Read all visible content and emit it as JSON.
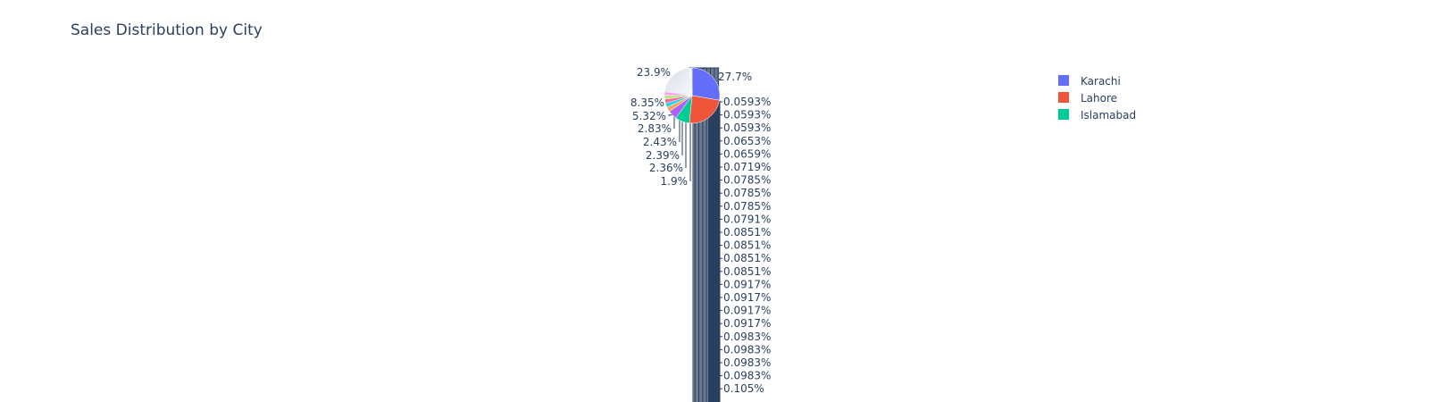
{
  "chart_data": {
    "type": "pie",
    "title": "Sales Distribution by City",
    "legend_position": "top-right",
    "legend": [
      {
        "label": "Karachi",
        "color": "#636efa"
      },
      {
        "label": "Lahore",
        "color": "#ef553b"
      },
      {
        "label": "Islamabad",
        "color": "#00cc96"
      }
    ],
    "slices": [
      27.7,
      23.9,
      8.35,
      5.32,
      2.83,
      2.43,
      2.39,
      2.36,
      1.9
    ],
    "small_slice_labels": [
      "0.0593%",
      "0.0593%",
      "0.0593%",
      "0.0653%",
      "0.0659%",
      "0.0719%",
      "0.0785%",
      "0.0785%",
      "0.0785%",
      "0.0791%",
      "0.0851%",
      "0.0851%",
      "0.0851%",
      "0.0851%",
      "0.0917%",
      "0.0917%",
      "0.0917%",
      "0.0917%",
      "0.0983%",
      "0.0983%",
      "0.0983%",
      "0.0983%",
      "0.105%"
    ],
    "small_slice_values": [
      0.0593,
      0.0593,
      0.0593,
      0.0653,
      0.0659,
      0.0719,
      0.0785,
      0.0785,
      0.0785,
      0.0791,
      0.0851,
      0.0851,
      0.0851,
      0.0851,
      0.0917,
      0.0917,
      0.0917,
      0.0917,
      0.0983,
      0.0983,
      0.0983,
      0.0983,
      0.105
    ],
    "colors": [
      "#636efa",
      "#ef553b",
      "#00cc96",
      "#ab63fa",
      "#ffa15a",
      "#19d3f3",
      "#ff6692",
      "#b6e880",
      "#ff97ff",
      "#fecb52"
    ]
  }
}
